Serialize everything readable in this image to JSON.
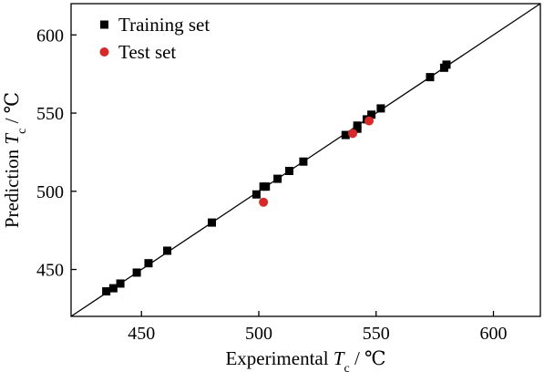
{
  "chart_data": {
    "type": "scatter",
    "xlabel": {
      "main": "Experimental ",
      "var": "T",
      "sub": "c",
      "unit": " / ℃"
    },
    "ylabel": {
      "main": "Prediction ",
      "var": "T",
      "sub": "c",
      "unit": " / ℃"
    },
    "xlim": [
      420,
      620
    ],
    "ylim": [
      420,
      620
    ],
    "xticks": [
      450,
      500,
      550,
      600
    ],
    "yticks": [
      450,
      500,
      550,
      600
    ],
    "xtick_labels": [
      "450",
      "500",
      "550",
      "600"
    ],
    "ytick_labels": [
      "450",
      "500",
      "550",
      "600"
    ],
    "grid": false,
    "legend": "top-left",
    "reference_line": {
      "type": "y=x",
      "color": "#000000"
    },
    "series": [
      {
        "name": "Training set",
        "marker": "square",
        "color": "#000000",
        "points": [
          [
            435,
            436
          ],
          [
            438,
            438
          ],
          [
            441,
            441
          ],
          [
            448,
            448
          ],
          [
            453,
            454
          ],
          [
            461,
            462
          ],
          [
            480,
            480
          ],
          [
            499,
            498
          ],
          [
            502,
            503
          ],
          [
            503,
            503
          ],
          [
            508,
            508
          ],
          [
            513,
            513
          ],
          [
            519,
            519
          ],
          [
            537,
            536
          ],
          [
            542,
            540
          ],
          [
            542,
            542
          ],
          [
            546,
            546
          ],
          [
            548,
            549
          ],
          [
            552,
            553
          ],
          [
            573,
            573
          ],
          [
            579,
            579
          ],
          [
            580,
            581
          ]
        ]
      },
      {
        "name": "Test set",
        "marker": "circle",
        "color": "#d62a2a",
        "points": [
          [
            502,
            493
          ],
          [
            540,
            537
          ],
          [
            547,
            545
          ]
        ]
      }
    ]
  }
}
